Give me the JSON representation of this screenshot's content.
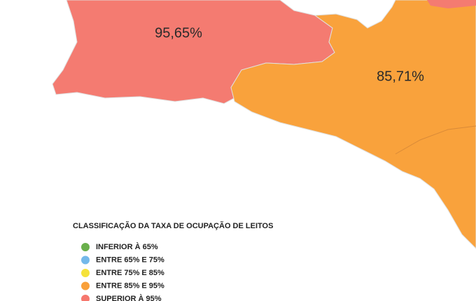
{
  "regions": [
    {
      "label": "95,65%",
      "color": "#f47b71"
    },
    {
      "label": "85,71%",
      "color": "#f9a23c"
    }
  ],
  "legend": {
    "title": "CLASSIFICAÇÃO DA TAXA DE OCUPAÇÃO DE LEITOS",
    "items": [
      {
        "label": "INFERIOR À 65%",
        "color": "#6ab04c"
      },
      {
        "label": "ENTRE 65% E 75%",
        "color": "#74b9ea"
      },
      {
        "label": "ENTRE 75% E 85%",
        "color": "#f5e23a"
      },
      {
        "label": "ENTRE 85% E 95%",
        "color": "#f9a03a"
      },
      {
        "label": "SUPERIOR À 95%",
        "color": "#f6776d"
      }
    ]
  }
}
